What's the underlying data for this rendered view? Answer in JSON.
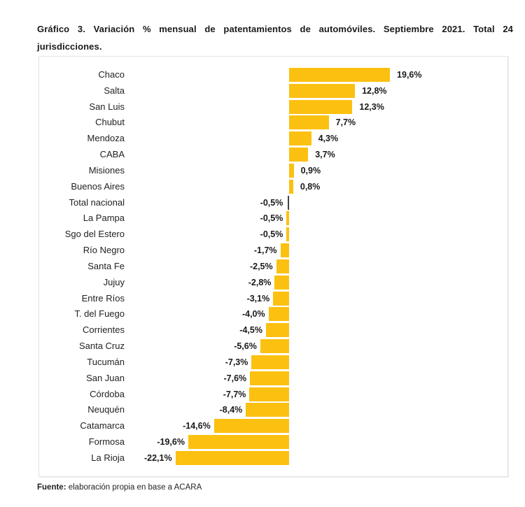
{
  "title": "Gráfico 3. Variación % mensual de patentamientos de automóviles. Septiembre 2021. Total 24 jurisdicciones.",
  "source": {
    "label": "Fuente:",
    "text": " elaboración propia en base a ACARA"
  },
  "colors": {
    "bar": "#fcc010",
    "total_bar": "#444444"
  },
  "chart_data": {
    "type": "bar",
    "orientation": "horizontal",
    "title": "Gráfico 3. Variación % mensual de patentamientos de automóviles. Septiembre 2021. Total 24 jurisdicciones.",
    "xlabel": "",
    "ylabel": "",
    "grid": false,
    "legend": null,
    "categories": [
      "Chaco",
      "Salta",
      "San Luis",
      "Chubut",
      "Mendoza",
      "CABA",
      "Misiones",
      "Buenos Aires",
      "Total nacional",
      "La Pampa",
      "Sgo del Estero",
      "Río Negro",
      "Santa Fe",
      "Jujuy",
      "Entre Ríos",
      "T. del Fuego",
      "Corrientes",
      "Santa Cruz",
      "Tucumán",
      "San Juan",
      "Córdoba",
      "Neuquén",
      "Catamarca",
      "Formosa",
      "La Rioja"
    ],
    "values": [
      19.6,
      12.8,
      12.3,
      7.7,
      4.3,
      3.7,
      0.9,
      0.8,
      -0.5,
      -0.5,
      -0.5,
      -1.7,
      -2.5,
      -2.8,
      -3.1,
      -4.0,
      -4.5,
      -5.6,
      -7.3,
      -7.6,
      -7.7,
      -8.4,
      -14.6,
      -19.6,
      -22.1
    ],
    "value_labels": [
      "19,6%",
      "12,8%",
      "12,3%",
      "7,7%",
      "4,3%",
      "3,7%",
      "0,9%",
      "0,8%",
      "-0,5%",
      "-0,5%",
      "-0,5%",
      "-1,7%",
      "-2,5%",
      "-2,8%",
      "-3,1%",
      "-4,0%",
      "-4,5%",
      "-5,6%",
      "-7,3%",
      "-7,6%",
      "-7,7%",
      "-8,4%",
      "-14,6%",
      "-19,6%",
      "-22,1%"
    ],
    "highlight": "Total nacional",
    "xlim": [
      -22.1,
      19.6
    ],
    "unit": "%"
  }
}
